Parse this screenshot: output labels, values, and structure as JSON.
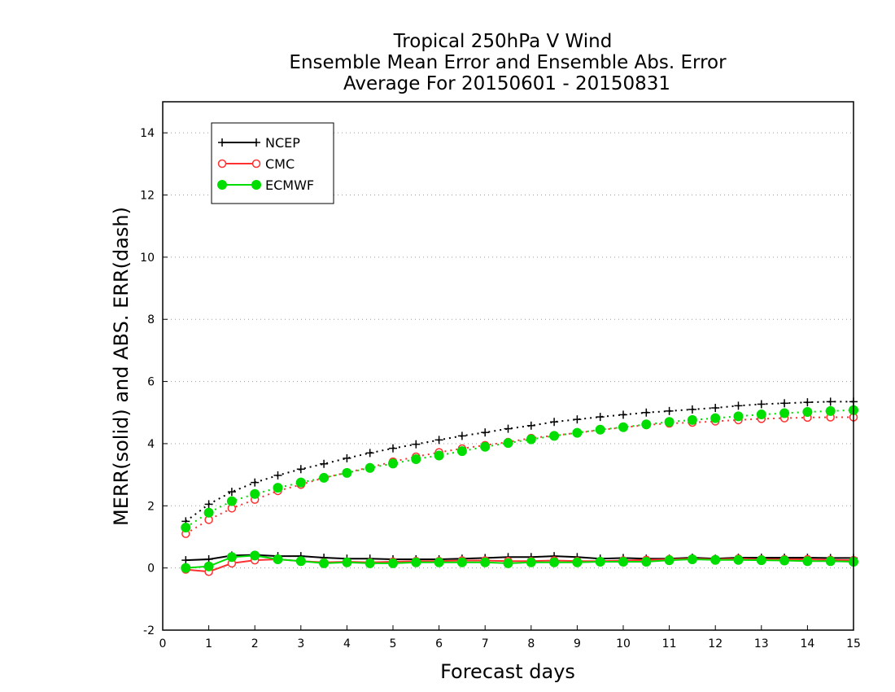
{
  "colors": {
    "NCEP": "#000000",
    "CMC": "#ff3030",
    "ECMWF": "#00dd00",
    "grid": "#9a9a9a"
  },
  "chart_data": {
    "type": "line",
    "title": [
      "Tropical 250hPa V Wind",
      "Ensemble Mean Error and Ensemble Abs. Error",
      "Average For 20150601 - 20150831"
    ],
    "xlabel": "Forecast days",
    "ylabel": "MERR(solid) and ABS. ERR(dash)",
    "xlim": [
      0,
      15
    ],
    "ylim": [
      -2,
      15
    ],
    "xticks": [
      0,
      1,
      2,
      3,
      4,
      5,
      6,
      7,
      8,
      9,
      10,
      11,
      12,
      13,
      14,
      15
    ],
    "yticks": [
      -2,
      0,
      2,
      4,
      6,
      8,
      10,
      12,
      14
    ],
    "grid": "horizontal dotted",
    "legend_position": "top-left",
    "x": [
      0.5,
      1,
      1.5,
      2,
      2.5,
      3,
      3.5,
      4,
      4.5,
      5,
      5.5,
      6,
      6.5,
      7,
      7.5,
      8,
      8.5,
      9,
      9.5,
      10,
      10.5,
      11,
      11.5,
      12,
      12.5,
      13,
      13.5,
      14,
      14.5,
      15
    ],
    "series": [
      {
        "name": "NCEP",
        "marker": "plus",
        "merr": [
          0.25,
          0.28,
          0.4,
          0.42,
          0.38,
          0.38,
          0.33,
          0.3,
          0.3,
          0.28,
          0.28,
          0.28,
          0.3,
          0.32,
          0.35,
          0.35,
          0.38,
          0.35,
          0.3,
          0.32,
          0.3,
          0.3,
          0.33,
          0.3,
          0.33,
          0.33,
          0.33,
          0.33,
          0.32,
          0.32
        ],
        "abs_err": [
          1.5,
          2.05,
          2.45,
          2.75,
          2.98,
          3.18,
          3.35,
          3.53,
          3.7,
          3.85,
          3.98,
          4.12,
          4.25,
          4.36,
          4.48,
          4.58,
          4.7,
          4.78,
          4.86,
          4.93,
          5.0,
          5.05,
          5.1,
          5.15,
          5.22,
          5.27,
          5.3,
          5.33,
          5.35,
          5.35
        ]
      },
      {
        "name": "CMC",
        "marker": "open-circle",
        "merr": [
          -0.05,
          -0.12,
          0.15,
          0.25,
          0.28,
          0.22,
          0.18,
          0.2,
          0.18,
          0.2,
          0.22,
          0.22,
          0.24,
          0.24,
          0.22,
          0.22,
          0.24,
          0.22,
          0.22,
          0.24,
          0.26,
          0.28,
          0.3,
          0.28,
          0.3,
          0.28,
          0.28,
          0.28,
          0.26,
          0.25
        ],
        "abs_err": [
          1.1,
          1.55,
          1.92,
          2.2,
          2.48,
          2.68,
          2.9,
          3.07,
          3.24,
          3.42,
          3.58,
          3.72,
          3.84,
          3.95,
          4.05,
          4.18,
          4.26,
          4.35,
          4.44,
          4.52,
          4.6,
          4.65,
          4.68,
          4.72,
          4.76,
          4.8,
          4.82,
          4.84,
          4.85,
          4.85
        ]
      },
      {
        "name": "ECMWF",
        "marker": "filled-circle",
        "merr": [
          0.0,
          0.05,
          0.35,
          0.4,
          0.28,
          0.22,
          0.15,
          0.18,
          0.15,
          0.15,
          0.18,
          0.18,
          0.18,
          0.18,
          0.15,
          0.18,
          0.18,
          0.18,
          0.2,
          0.2,
          0.2,
          0.25,
          0.28,
          0.26,
          0.26,
          0.25,
          0.24,
          0.22,
          0.22,
          0.2
        ],
        "abs_err": [
          1.3,
          1.78,
          2.15,
          2.38,
          2.58,
          2.75,
          2.9,
          3.06,
          3.22,
          3.36,
          3.5,
          3.62,
          3.76,
          3.9,
          4.02,
          4.14,
          4.25,
          4.35,
          4.45,
          4.53,
          4.62,
          4.7,
          4.76,
          4.82,
          4.88,
          4.94,
          4.98,
          5.02,
          5.05,
          5.08
        ]
      }
    ]
  }
}
